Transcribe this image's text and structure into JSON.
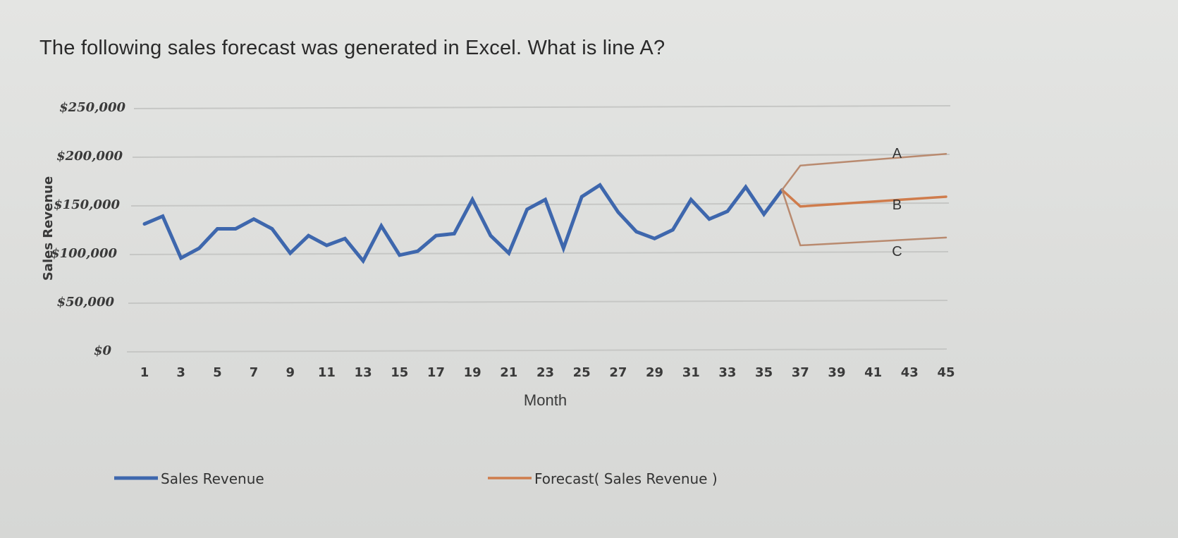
{
  "question": "The following sales forecast was generated in Excel. What is line A?",
  "chart_data": {
    "type": "line",
    "xlabel": "Month",
    "ylabel": "Sales Revenue",
    "ylim": [
      0,
      250000
    ],
    "y_ticks": [
      "$0",
      "$50,000",
      "$100,000",
      "$150,000",
      "$200,000",
      "$250,000"
    ],
    "x_ticks": [
      "1",
      "3",
      "5",
      "7",
      "9",
      "11",
      "13",
      "15",
      "17",
      "19",
      "21",
      "23",
      "25",
      "27",
      "29",
      "31",
      "33",
      "35",
      "37",
      "39",
      "41",
      "43",
      "45"
    ],
    "grid": "horizontal",
    "legend_position": "bottom",
    "series": [
      {
        "name": "Sales Revenue",
        "color": "#3e67ad",
        "x": [
          1,
          2,
          3,
          4,
          5,
          6,
          7,
          8,
          9,
          10,
          11,
          12,
          13,
          14,
          15,
          16,
          17,
          18,
          19,
          20,
          21,
          22,
          23,
          24,
          25,
          26,
          27,
          28,
          29,
          30,
          31,
          32,
          33,
          34,
          35,
          36
        ],
        "values": [
          130000,
          138000,
          95000,
          105000,
          125000,
          125000,
          135000,
          125000,
          100000,
          118000,
          108000,
          115000,
          92000,
          128000,
          98000,
          102000,
          118000,
          120000,
          155000,
          118000,
          100000,
          145000,
          155000,
          105000,
          158000,
          170000,
          142000,
          122000,
          115000,
          124000,
          155000,
          135000,
          143000,
          168000,
          140000,
          165000
        ]
      },
      {
        "name": "Forecast( Sales Revenue )",
        "color": "#cf7c4c",
        "x": [
          36,
          37,
          45
        ],
        "values": [
          165000,
          148000,
          158000
        ]
      },
      {
        "color": "#b98a6f",
        "x": [
          36,
          37,
          45
        ],
        "values": [
          165000,
          190000,
          202000
        ]
      },
      {
        "color": "#b98a6f",
        "x": [
          36,
          37,
          45
        ],
        "values": [
          165000,
          108000,
          116000
        ]
      }
    ],
    "annotations": [
      {
        "text": "A",
        "x": 42,
        "y": 203000
      },
      {
        "text": "B",
        "x": 42,
        "y": 150000
      },
      {
        "text": "C",
        "x": 42,
        "y": 102000
      }
    ],
    "legend": [
      {
        "label": "Sales Revenue",
        "color": "#3e67ad"
      },
      {
        "label": "Forecast( Sales Revenue )",
        "color": "#cf7c4c"
      }
    ]
  }
}
